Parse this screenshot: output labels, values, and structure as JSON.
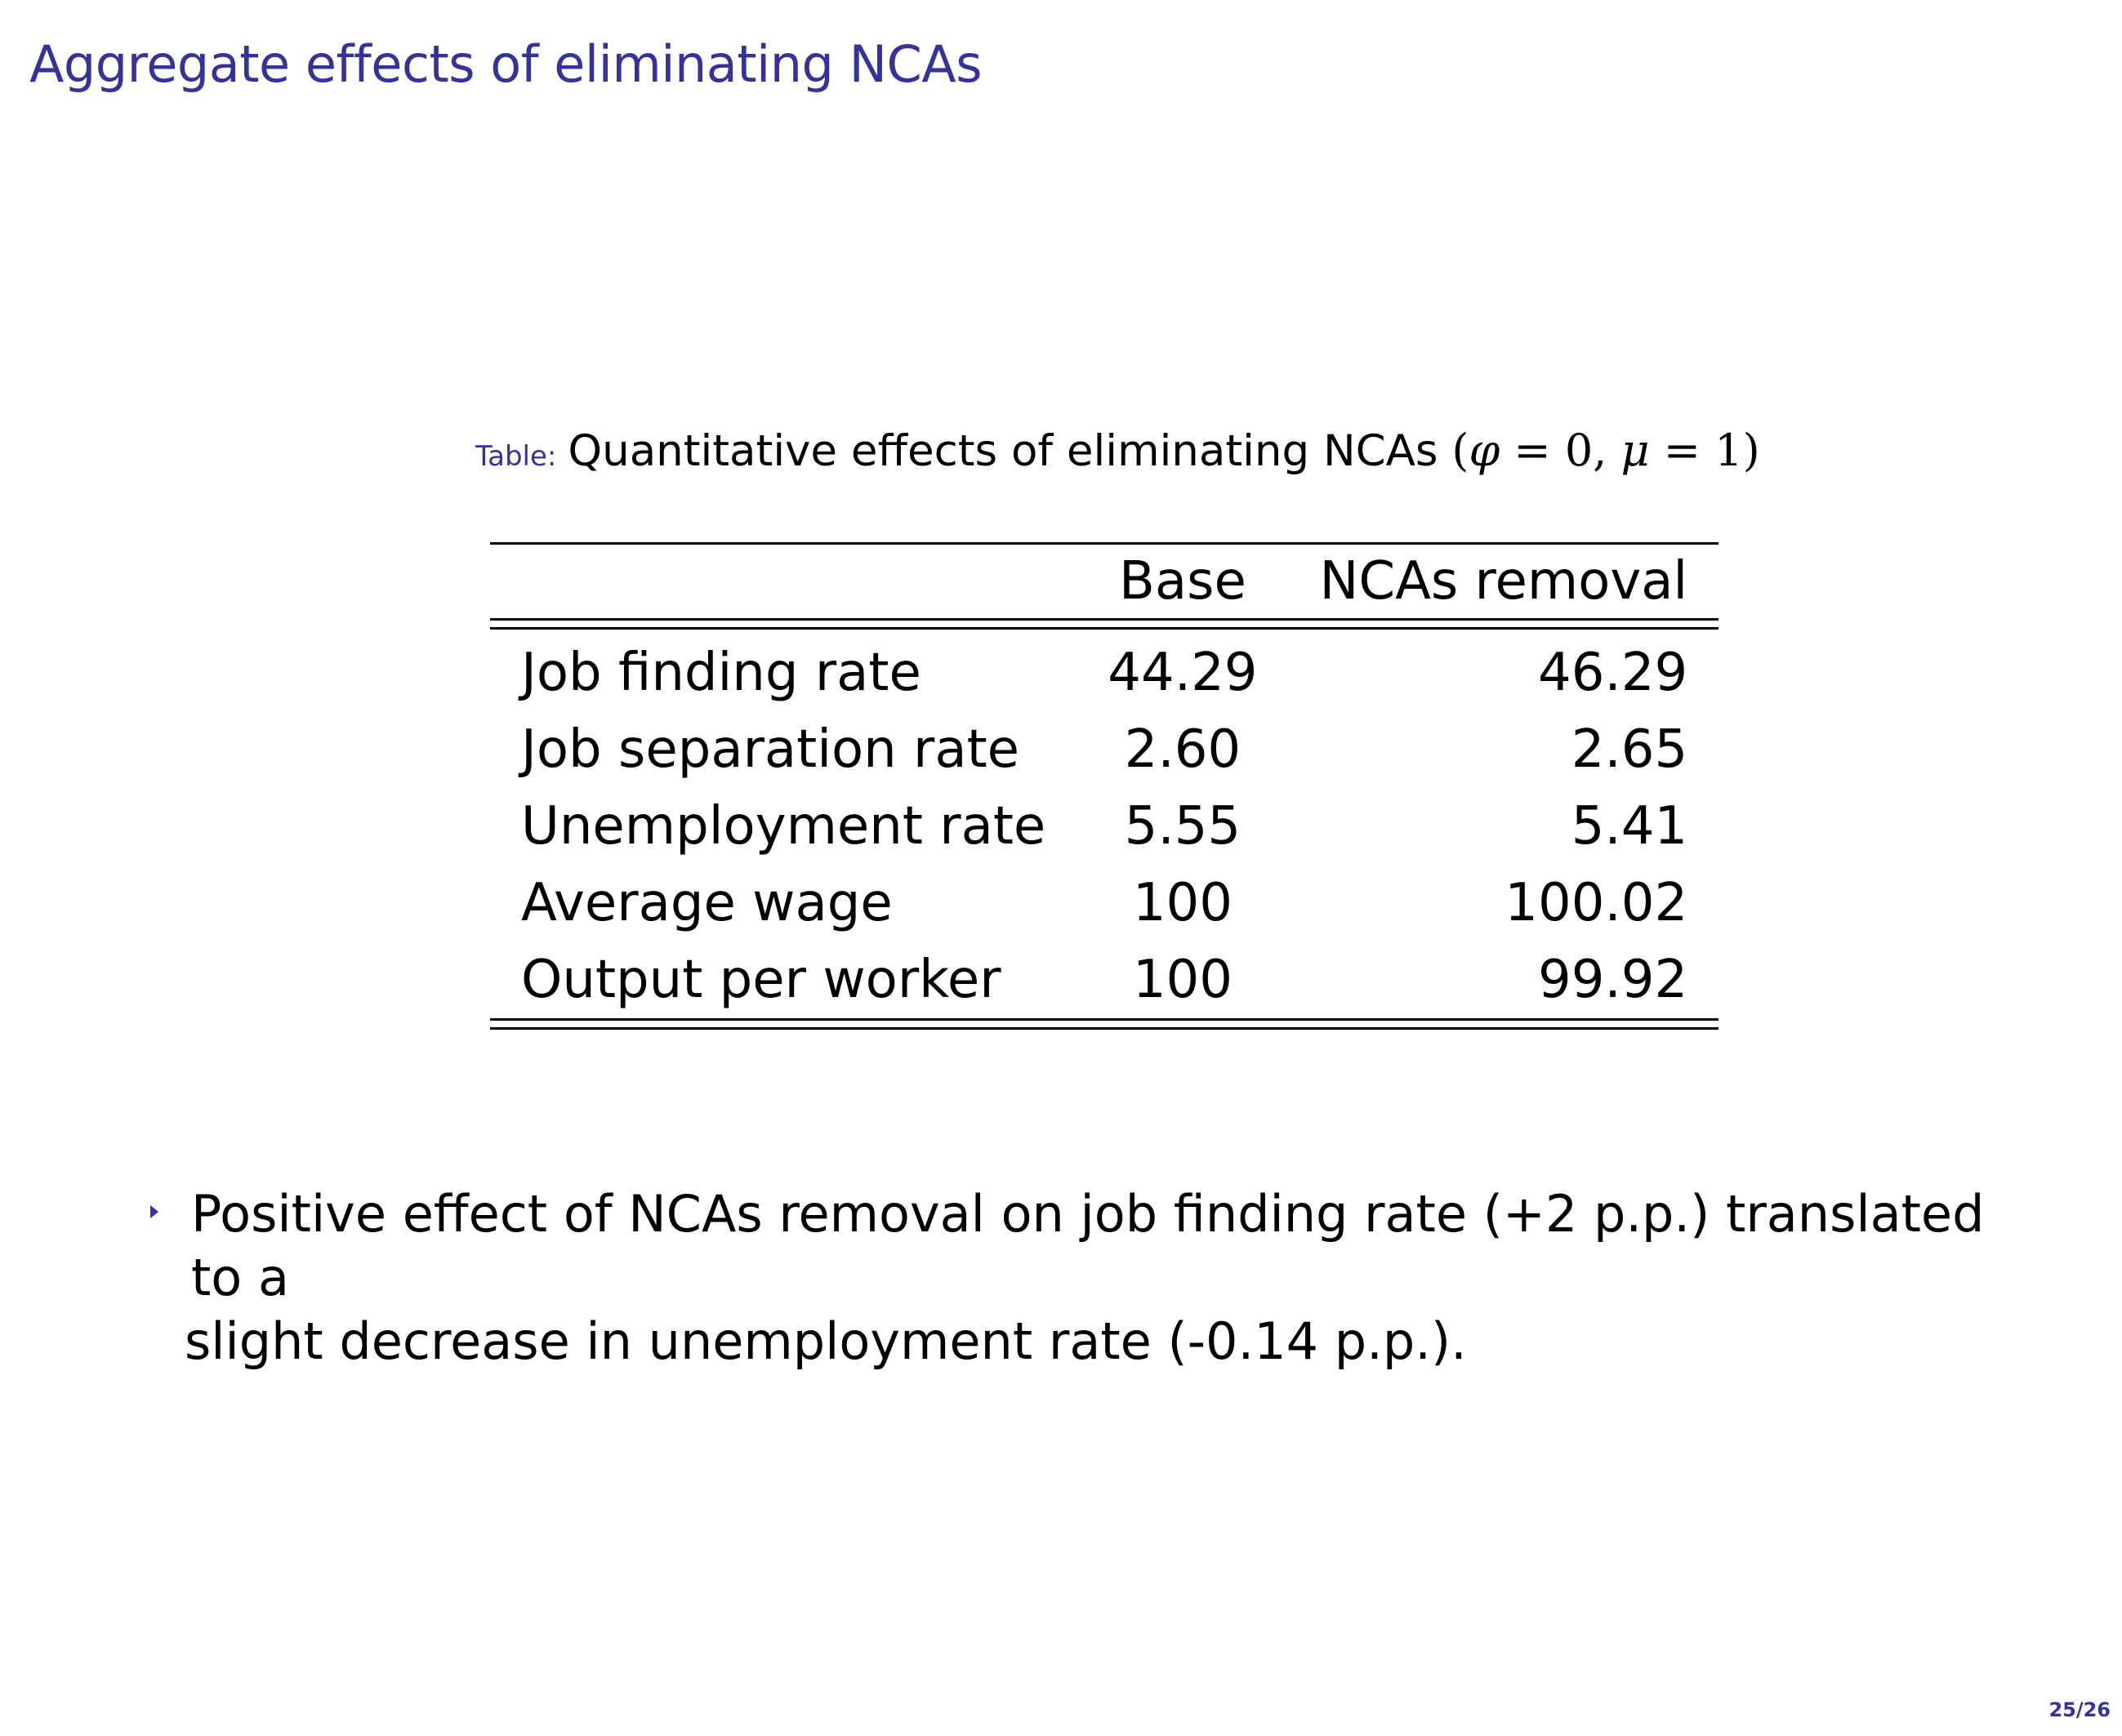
{
  "slide": {
    "title": "Aggregate effects of eliminating NCAs",
    "page_number": "25/26"
  },
  "table": {
    "caption_prefix": "Table:",
    "caption_text": "Quantitative effects of eliminating NCAs",
    "caption_math": {
      "open": "(",
      "phi": "φ",
      "phi_value": " = 0, ",
      "mu": "μ",
      "mu_value": " = 1",
      "close": ")"
    },
    "headers": [
      "",
      "Base",
      "NCAs removal"
    ],
    "rows": [
      {
        "label": "Job finding rate",
        "base": "44.29",
        "removal": "46.29"
      },
      {
        "label": "Job separation rate",
        "base": "2.60",
        "removal": "2.65"
      },
      {
        "label": "Unemployment rate",
        "base": "5.55",
        "removal": "5.41"
      },
      {
        "label": "Average wage",
        "base": "100",
        "removal": "100.02"
      },
      {
        "label": "Output per worker",
        "base": "100",
        "removal": "99.92"
      }
    ]
  },
  "bullets": [
    {
      "line1": "Positive effect of NCAs removal on job finding rate (+2 p.p.) translated to a",
      "line2": "slight decrease in unemployment rate (-0.14 p.p.)."
    }
  ]
}
